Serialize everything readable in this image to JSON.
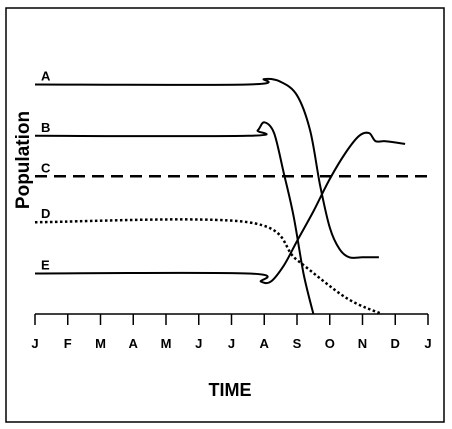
{
  "chart_data": {
    "type": "line",
    "xlabel": "TIME",
    "ylabel": "Population",
    "x_ticks": [
      "J",
      "F",
      "M",
      "A",
      "M",
      "J",
      "J",
      "A",
      "S",
      "O",
      "N",
      "D",
      "J"
    ],
    "xlim": [
      0,
      12
    ],
    "ylim": [
      0,
      100
    ],
    "grid": false,
    "legend": "inline-left",
    "series": [
      {
        "name": "A",
        "style": "solid",
        "color": "#000000",
        "points": [
          [
            0,
            85
          ],
          [
            6.5,
            85
          ],
          [
            7.0,
            87
          ],
          [
            7.5,
            86
          ],
          [
            8.0,
            81
          ],
          [
            8.4,
            68
          ],
          [
            8.7,
            48
          ],
          [
            9.0,
            32
          ],
          [
            9.3,
            24
          ],
          [
            9.6,
            21
          ],
          [
            10.0,
            21
          ],
          [
            10.5,
            21
          ]
        ]
      },
      {
        "name": "B",
        "style": "solid",
        "color": "#000000",
        "points": [
          [
            0,
            66
          ],
          [
            6.5,
            66
          ],
          [
            6.8,
            68
          ],
          [
            7.0,
            71
          ],
          [
            7.3,
            67
          ],
          [
            7.6,
            52
          ],
          [
            7.9,
            36
          ],
          [
            8.2,
            15
          ],
          [
            8.5,
            0
          ]
        ]
      },
      {
        "name": "C",
        "style": "dashed",
        "color": "#000000",
        "points": [
          [
            0,
            51
          ],
          [
            12,
            51
          ]
        ]
      },
      {
        "name": "D",
        "style": "dotted",
        "color": "#000000",
        "points": [
          [
            0,
            34
          ],
          [
            6.5,
            34
          ],
          [
            8.0,
            20
          ],
          [
            9.5,
            6
          ],
          [
            10.6,
            0
          ]
        ]
      },
      {
        "name": "E",
        "style": "solid",
        "color": "#000000",
        "points": [
          [
            0,
            15
          ],
          [
            6.5,
            15
          ],
          [
            6.9,
            12
          ],
          [
            7.2,
            12
          ],
          [
            7.6,
            18
          ],
          [
            8.0,
            27
          ],
          [
            8.5,
            38
          ],
          [
            9.0,
            50
          ],
          [
            9.5,
            60
          ],
          [
            9.9,
            66
          ],
          [
            10.2,
            67
          ],
          [
            10.4,
            64
          ],
          [
            10.7,
            64
          ],
          [
            11.3,
            63
          ]
        ]
      }
    ]
  }
}
